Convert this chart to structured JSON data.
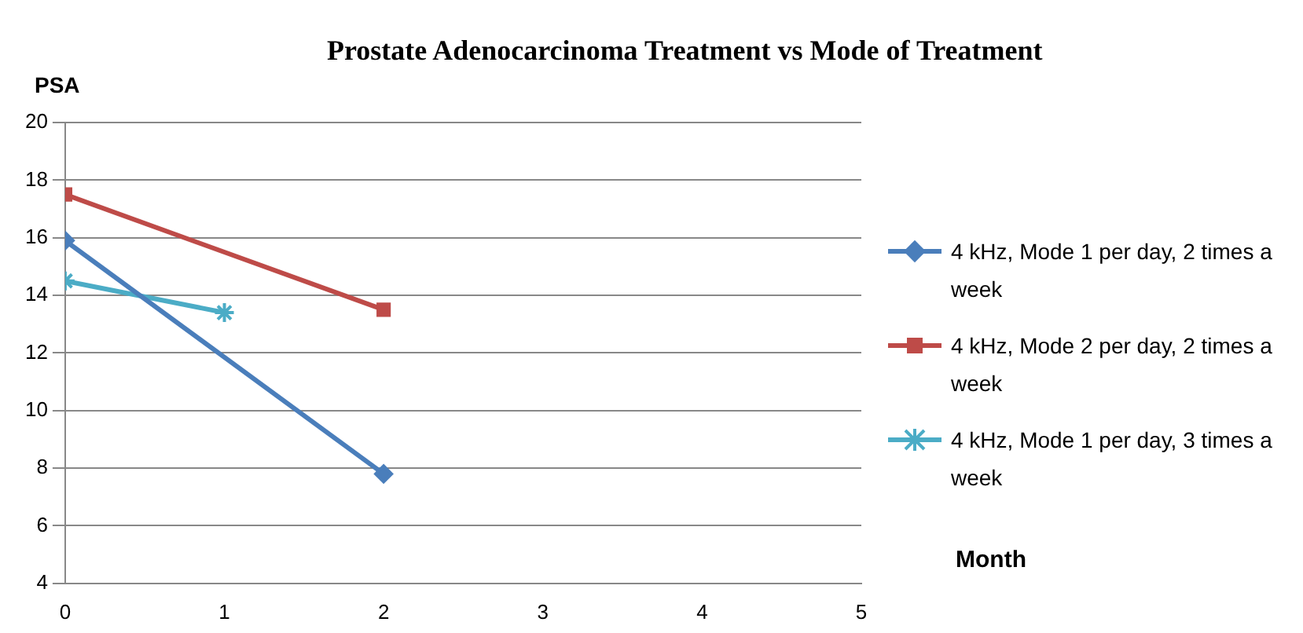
{
  "chart_data": {
    "type": "line",
    "title": "Prostate Adenocarcinoma Treatment vs Mode of Treatment",
    "xlabel": "Month",
    "ylabel": "PSA",
    "series": [
      {
        "name": "4 kHz, Mode 1 per day, 2 times a week",
        "color": "#4a7ebb",
        "x": [
          0,
          2
        ],
        "values": [
          15.9,
          7.8
        ],
        "marker": "diamond"
      },
      {
        "name": "4 kHz, Mode 2 per day, 2 times a week",
        "color": "#be4b48",
        "x": [
          0,
          2
        ],
        "values": [
          17.5,
          13.5
        ],
        "marker": "square"
      },
      {
        "name": "4 kHz, Mode 1 per day, 3 times a week",
        "color": "#4bacc6",
        "x": [
          0,
          1
        ],
        "values": [
          14.5,
          13.4
        ],
        "marker": "cross"
      }
    ],
    "xlim": [
      0,
      5
    ],
    "xticks": [
      0,
      1,
      2,
      3,
      4,
      5
    ],
    "ylim": [
      4,
      20
    ],
    "yticks": [
      4,
      6,
      8,
      10,
      12,
      14,
      16,
      18,
      20
    ],
    "grid": "y",
    "legend": "right"
  }
}
